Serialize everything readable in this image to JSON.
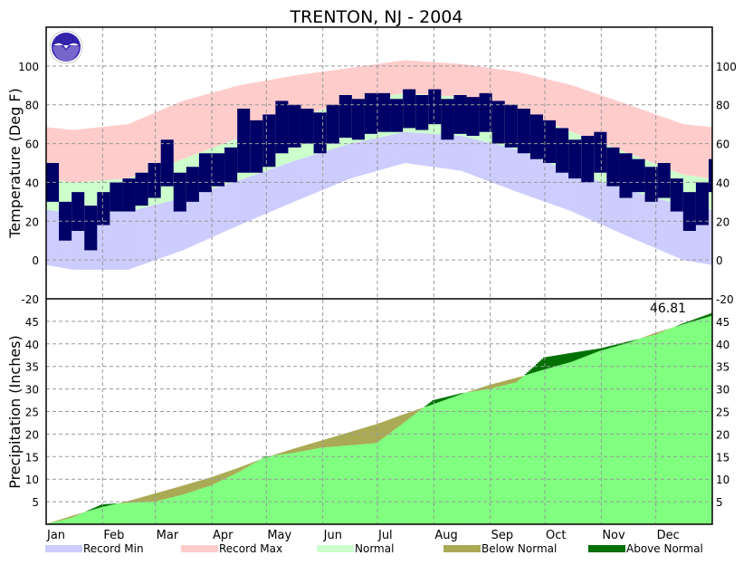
{
  "chart_data": [
    {
      "type": "bar",
      "title": "TRENTON, NJ - 2004",
      "ylabel": "Temperature (Deg F)",
      "ylim": [
        -20,
        120
      ],
      "yticks": [
        -20,
        0,
        20,
        40,
        60,
        80,
        100
      ],
      "grid": true,
      "months": [
        "Jan",
        "Feb",
        "Mar",
        "Apr",
        "May",
        "Jun",
        "Jul",
        "Aug",
        "Sep",
        "Oct",
        "Nov",
        "Dec"
      ],
      "month_start_day": [
        0,
        31,
        60,
        91,
        121,
        152,
        182,
        213,
        244,
        274,
        305,
        335,
        366
      ],
      "climo_day": [
        15,
        45,
        75,
        106,
        136,
        167,
        197,
        228,
        259,
        289,
        320,
        350
      ],
      "normal_high": [
        40,
        42,
        52,
        63,
        73,
        82,
        86,
        84,
        77,
        66,
        55,
        44
      ],
      "normal_low": [
        24,
        25,
        32,
        41,
        51,
        60,
        66,
        64,
        57,
        45,
        36,
        28
      ],
      "record_max": [
        67,
        70,
        82,
        90,
        95,
        99,
        103,
        101,
        97,
        90,
        80,
        70
      ],
      "record_min": [
        -5,
        -5,
        5,
        18,
        30,
        42,
        50,
        46,
        35,
        25,
        12,
        0
      ],
      "observed_week_start_day": [
        0,
        7,
        14,
        21,
        28,
        35,
        42,
        49,
        56,
        63,
        70,
        77,
        84,
        91,
        98,
        105,
        112,
        119,
        126,
        133,
        140,
        147,
        154,
        161,
        168,
        175,
        182,
        189,
        196,
        203,
        210,
        217,
        224,
        231,
        238,
        245,
        252,
        259,
        266,
        273,
        280,
        287,
        294,
        301,
        308,
        315,
        322,
        329,
        336,
        343,
        350,
        357,
        364
      ],
      "observed_high": [
        50,
        30,
        35,
        28,
        35,
        40,
        42,
        45,
        50,
        62,
        45,
        48,
        55,
        55,
        58,
        78,
        72,
        75,
        82,
        80,
        78,
        76,
        80,
        85,
        83,
        86,
        86,
        83,
        88,
        85,
        88,
        83,
        85,
        84,
        86,
        82,
        80,
        78,
        75,
        72,
        68,
        62,
        64,
        66,
        58,
        55,
        52,
        48,
        50,
        42,
        35,
        40,
        52
      ],
      "observed_low": [
        30,
        10,
        15,
        5,
        18,
        25,
        25,
        28,
        32,
        38,
        25,
        30,
        35,
        38,
        40,
        45,
        45,
        48,
        55,
        58,
        60,
        55,
        60,
        63,
        62,
        65,
        66,
        66,
        68,
        67,
        70,
        62,
        65,
        64,
        66,
        60,
        58,
        55,
        52,
        50,
        45,
        42,
        40,
        45,
        38,
        32,
        35,
        30,
        32,
        25,
        15,
        18,
        35
      ]
    },
    {
      "type": "area",
      "ylabel": "Precipitation (Inches)",
      "ylim": [
        0,
        50
      ],
      "yticks": [
        5,
        10,
        15,
        20,
        25,
        30,
        35,
        40,
        45
      ],
      "grid": true,
      "day": [
        0,
        15,
        31,
        46,
        60,
        75,
        91,
        106,
        121,
        136,
        152,
        167,
        182,
        197,
        213,
        228,
        244,
        259,
        274,
        289,
        305,
        320,
        335,
        350,
        366
      ],
      "actual_cumulative": [
        0,
        1.5,
        4.4,
        4.8,
        5.0,
        6.5,
        8.6,
        11.5,
        15.0,
        15.8,
        17.0,
        17.5,
        18.0,
        22.5,
        27.5,
        29.0,
        30.0,
        31.5,
        37.0,
        38.0,
        39.0,
        40.5,
        42.0,
        44.5,
        46.81
      ],
      "normal_cumulative": [
        0,
        1.9,
        3.8,
        5.2,
        6.8,
        8.5,
        10.4,
        12.5,
        14.8,
        16.7,
        18.6,
        20.4,
        22.2,
        24.4,
        26.6,
        28.8,
        30.9,
        32.5,
        34.3,
        36.0,
        38.5,
        40.2,
        42.4,
        44.3,
        46.2
      ],
      "total_label": "46.81"
    }
  ],
  "legend": [
    {
      "label": "Record Min",
      "color": "#ccccff"
    },
    {
      "label": "Record Max",
      "color": "#ffcccc"
    },
    {
      "label": "Normal",
      "color": "#ccffcc"
    },
    {
      "label": "Below Normal",
      "color": "#aaaa55"
    },
    {
      "label": "Above Normal",
      "color": "#007000"
    }
  ],
  "colors": {
    "observed": "#000066",
    "precip_actual": "#80ff80",
    "border": "#000000",
    "grid": "#999999"
  },
  "logo_text": "NOAA"
}
